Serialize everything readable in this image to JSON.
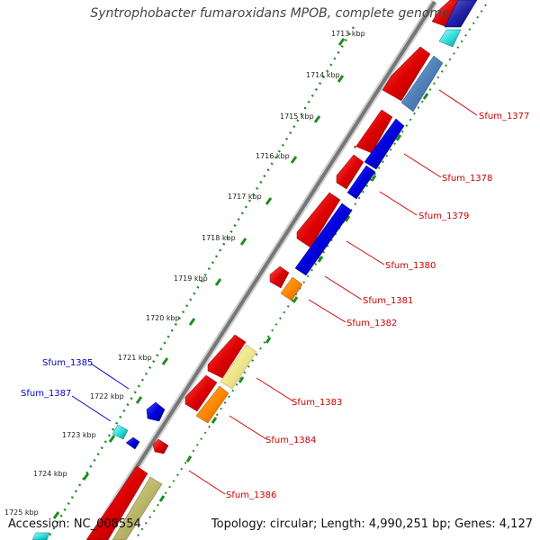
{
  "title": "Syntrophobacter fumaroxidans MPOB, complete genome",
  "accession": "Accession: NC_008554",
  "topology": "Topology: circular; Length: 4,990,251 bp; Genes: 4,127",
  "colors": {
    "backbone": "#808080",
    "tick_ring": "#228B22",
    "label_red": "#cc0000",
    "label_blue": "#0000cc"
  },
  "kbp_labels": [
    "1713 kbp",
    "1714 kbp",
    "1715 kbp",
    "1716 kbp",
    "1717 kbp",
    "1718 kbp",
    "1719 kbp",
    "1720 kbp",
    "1721 kbp",
    "1722 kbp",
    "1723 kbp",
    "1724 kbp",
    "1725 kbp"
  ],
  "gene_labels": [
    {
      "name": "Sfum_1377",
      "color": "red"
    },
    {
      "name": "Sfum_1378",
      "color": "red"
    },
    {
      "name": "Sfum_1379",
      "color": "red"
    },
    {
      "name": "Sfum_1380",
      "color": "red"
    },
    {
      "name": "Sfum_1381",
      "color": "red"
    },
    {
      "name": "Sfum_1382",
      "color": "red"
    },
    {
      "name": "Sfum_1383",
      "color": "red"
    },
    {
      "name": "Sfum_1384",
      "color": "red"
    },
    {
      "name": "Sfum_1386",
      "color": "red"
    },
    {
      "name": "Sfum_1385",
      "color": "blue"
    },
    {
      "name": "Sfum_1387",
      "color": "blue"
    }
  ]
}
